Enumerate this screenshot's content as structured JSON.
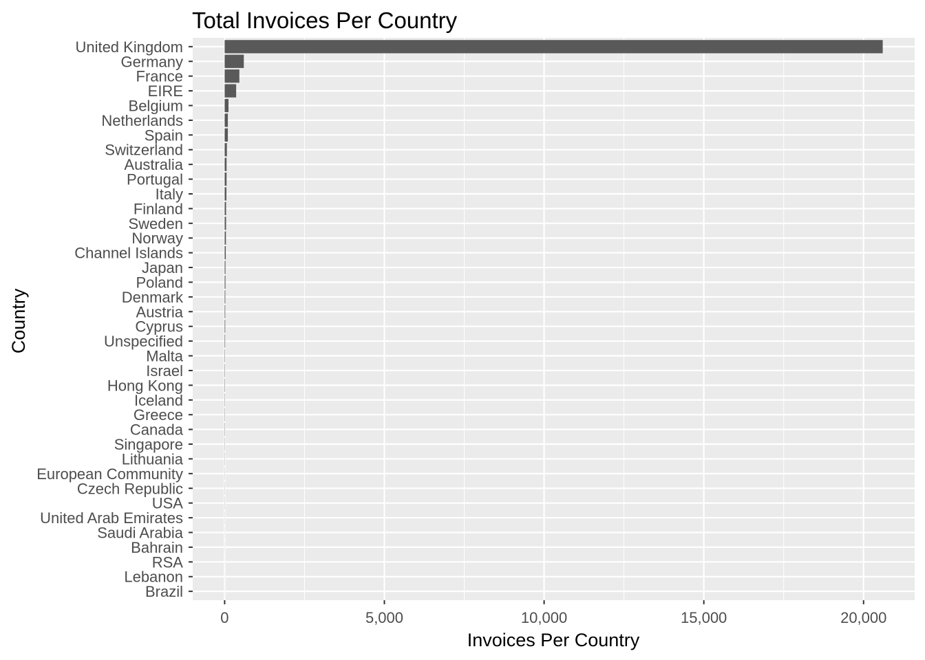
{
  "chart_data": {
    "type": "bar",
    "orientation": "horizontal",
    "title": "Total Invoices Per Country",
    "xlabel": "Invoices Per Country",
    "ylabel": "Country",
    "xlim": [
      -1000,
      21600
    ],
    "xticks": [
      0,
      5000,
      10000,
      15000,
      20000
    ],
    "xtick_labels": [
      "0",
      "5,000",
      "10,000",
      "15,000",
      "20,000"
    ],
    "grid": true,
    "bar_color": "#595959",
    "panel_color": "#EBEBEB",
    "grid_color": "#FFFFFF",
    "categories": [
      "United Kingdom",
      "Germany",
      "France",
      "EIRE",
      "Belgium",
      "Netherlands",
      "Spain",
      "Switzerland",
      "Australia",
      "Portugal",
      "Italy",
      "Finland",
      "Sweden",
      "Norway",
      "Channel Islands",
      "Japan",
      "Poland",
      "Denmark",
      "Austria",
      "Cyprus",
      "Unspecified",
      "Malta",
      "Israel",
      "Hong Kong",
      "Iceland",
      "Greece",
      "Canada",
      "Singapore",
      "Lithuania",
      "European Community",
      "Czech Republic",
      "USA",
      "United Arab Emirates",
      "Saudi Arabia",
      "Bahrain",
      "RSA",
      "Lebanon",
      "Brazil"
    ],
    "values": [
      20600,
      600,
      460,
      360,
      120,
      100,
      100,
      70,
      60,
      60,
      55,
      45,
      45,
      40,
      35,
      25,
      25,
      20,
      18,
      18,
      15,
      10,
      10,
      10,
      8,
      8,
      8,
      6,
      5,
      4,
      4,
      4,
      3,
      2,
      2,
      1,
      1,
      1
    ]
  }
}
